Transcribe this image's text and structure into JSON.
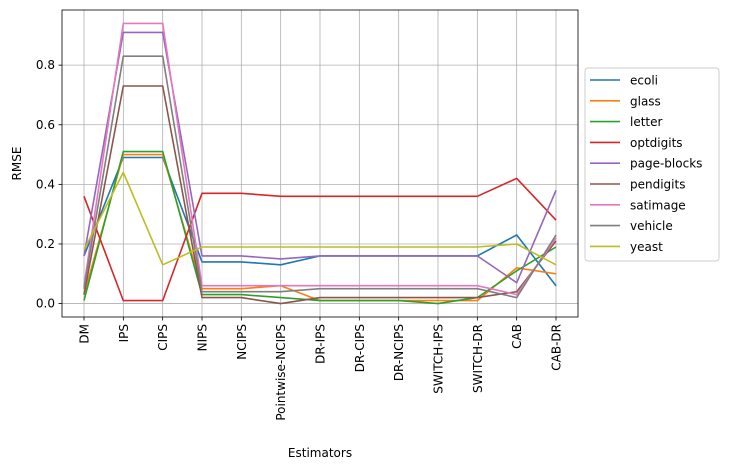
{
  "chart_data": {
    "type": "line",
    "title": "",
    "xlabel": "Estimators",
    "ylabel": "RMSE",
    "categories": [
      "DM",
      "IPS",
      "CIPS",
      "NIPS",
      "NCIPS",
      "Pointwise-NCIPS",
      "DR-IPS",
      "DR-CIPS",
      "DR-NCIPS",
      "SWITCH-IPS",
      "SWITCH-DR",
      "CAB",
      "CAB-DR"
    ],
    "ylim": [
      -0.045,
      0.985
    ],
    "yticks": [
      0.0,
      0.2,
      0.4,
      0.6,
      0.8
    ],
    "ytick_labels": [
      "0.0",
      "0.2",
      "0.4",
      "0.6",
      "0.8"
    ],
    "grid": true,
    "legend_position": "outside-right",
    "series": [
      {
        "name": "ecoli",
        "color": "#1f77b4",
        "values": [
          0.16,
          0.49,
          0.49,
          0.14,
          0.14,
          0.13,
          0.16,
          0.16,
          0.16,
          0.16,
          0.16,
          0.23,
          0.06
        ]
      },
      {
        "name": "glass",
        "color": "#ff7f0e",
        "values": [
          0.03,
          0.5,
          0.5,
          0.05,
          0.05,
          0.06,
          0.01,
          0.01,
          0.01,
          0.01,
          0.01,
          0.12,
          0.1
        ]
      },
      {
        "name": "letter",
        "color": "#2ca02c",
        "values": [
          0.01,
          0.51,
          0.51,
          0.03,
          0.03,
          0.02,
          0.01,
          0.01,
          0.01,
          0.0,
          0.02,
          0.11,
          0.19
        ]
      },
      {
        "name": "optdigits",
        "color": "#d62728",
        "values": [
          0.36,
          0.01,
          0.01,
          0.37,
          0.37,
          0.36,
          0.36,
          0.36,
          0.36,
          0.36,
          0.36,
          0.42,
          0.28
        ]
      },
      {
        "name": "page-blocks",
        "color": "#9467bd",
        "values": [
          0.16,
          0.91,
          0.91,
          0.16,
          0.16,
          0.15,
          0.16,
          0.16,
          0.16,
          0.16,
          0.16,
          0.07,
          0.38
        ]
      },
      {
        "name": "pendigits",
        "color": "#8c564b",
        "values": [
          0.03,
          0.73,
          0.73,
          0.02,
          0.02,
          0.0,
          0.02,
          0.02,
          0.02,
          0.02,
          0.02,
          0.04,
          0.21
        ]
      },
      {
        "name": "satimage",
        "color": "#e377c2",
        "values": [
          0.06,
          0.94,
          0.94,
          0.06,
          0.06,
          0.06,
          0.06,
          0.06,
          0.06,
          0.06,
          0.06,
          0.03,
          0.22
        ]
      },
      {
        "name": "vehicle",
        "color": "#7f7f7f",
        "values": [
          0.05,
          0.83,
          0.83,
          0.04,
          0.04,
          0.04,
          0.05,
          0.05,
          0.05,
          0.05,
          0.05,
          0.02,
          0.23
        ]
      },
      {
        "name": "yeast",
        "color": "#bcbd22",
        "values": [
          0.18,
          0.44,
          0.13,
          0.19,
          0.19,
          0.19,
          0.19,
          0.19,
          0.19,
          0.19,
          0.19,
          0.2,
          0.13
        ]
      }
    ]
  }
}
